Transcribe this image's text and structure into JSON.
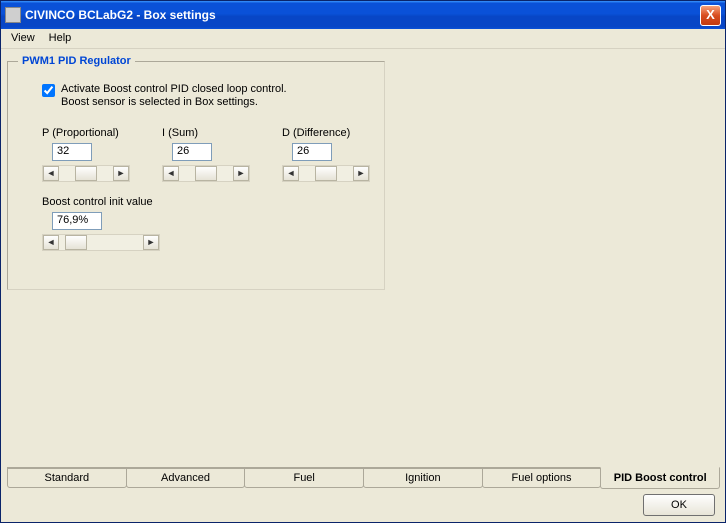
{
  "window": {
    "title": "CIVINCO  BCLabG2 - Box settings"
  },
  "menu": {
    "view": "View",
    "help": "Help"
  },
  "group": {
    "title": "PWM1 PID Regulator",
    "check_label_l1": "Activate Boost control PID closed loop control.",
    "check_label_l2": "Boost sensor is selected in Box settings.",
    "checked": true
  },
  "pid": {
    "p": {
      "label": "P (Proportional)",
      "value": "32"
    },
    "i": {
      "label": "I (Sum)",
      "value": "26"
    },
    "d": {
      "label": "D (Difference)",
      "value": "26"
    }
  },
  "boost": {
    "label": "Boost control init value",
    "value": "76,9%"
  },
  "tabs": {
    "items": [
      {
        "label": "Standard"
      },
      {
        "label": "Advanced"
      },
      {
        "label": "Fuel"
      },
      {
        "label": "Ignition"
      },
      {
        "label": "Fuel options"
      },
      {
        "label": "PID Boost control"
      }
    ],
    "active_index": 5
  },
  "buttons": {
    "ok": "OK",
    "close": "X"
  },
  "arrows": {
    "left": "◄",
    "right": "►"
  }
}
